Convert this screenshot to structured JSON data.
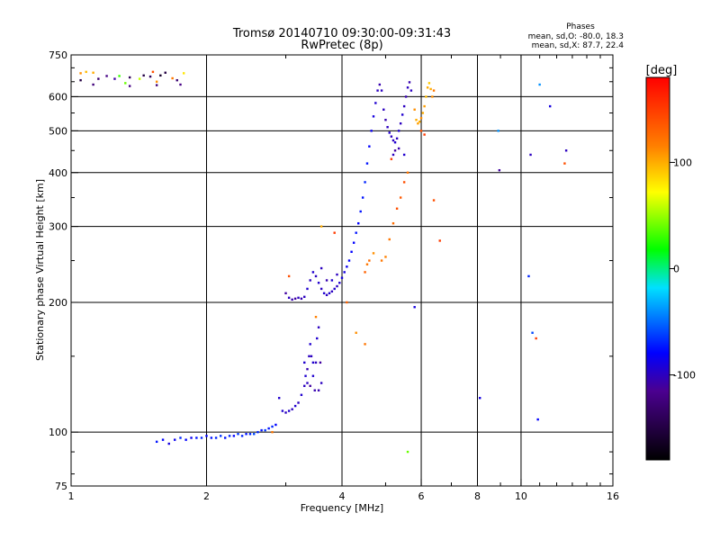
{
  "chart_data": {
    "type": "scatter",
    "title": "Tromsø 20140710 09:30:00-09:31:43",
    "subtitle": "RwPretec (8p)",
    "xlabel": "Frequency [MHz]",
    "ylabel": "Stationary phase Virtual Height [km]",
    "x_scale": "log",
    "y_scale": "log",
    "xlim": [
      1,
      16
    ],
    "ylim": [
      75,
      750
    ],
    "x_ticks": [
      1,
      2,
      4,
      6,
      8,
      10,
      16
    ],
    "x_tick_labels": [
      "1",
      "2",
      "4",
      "6",
      "8",
      "10",
      "16"
    ],
    "y_ticks": [
      75,
      100,
      200,
      300,
      400,
      500,
      600,
      750
    ],
    "y_tick_labels": [
      "75",
      "100",
      "200",
      "300",
      "400",
      "500",
      "600",
      "750"
    ],
    "x_grid": [
      2,
      4,
      6,
      8,
      10
    ],
    "y_grid": [
      100,
      200,
      300,
      400,
      500,
      600
    ],
    "stats": {
      "heading": "Phases",
      "line_o": "mean, sd,O: -80.0, 18.3",
      "line_x": "mean, sd,X:  87.7, 22.4"
    },
    "colorbar": {
      "label": "[deg]",
      "range": [
        -180,
        180
      ],
      "tick_values": [
        100,
        0,
        -100
      ],
      "tick_labels": [
        "100",
        "0",
        "-100"
      ]
    },
    "points_note": "approximate traces read from plot: [frequency MHz, virtual height km, phase deg]",
    "points": [
      [
        1.05,
        680,
        110
      ],
      [
        1.08,
        685,
        95
      ],
      [
        1.12,
        682,
        100
      ],
      [
        1.05,
        655,
        -150
      ],
      [
        1.15,
        660,
        -130
      ],
      [
        1.2,
        670,
        -120
      ],
      [
        1.25,
        660,
        -110
      ],
      [
        1.28,
        670,
        30
      ],
      [
        1.32,
        645,
        40
      ],
      [
        1.35,
        665,
        -140
      ],
      [
        1.42,
        660,
        60
      ],
      [
        1.45,
        672,
        -150
      ],
      [
        1.5,
        668,
        -140
      ],
      [
        1.52,
        685,
        140
      ],
      [
        1.55,
        650,
        110
      ],
      [
        1.58,
        672,
        -160
      ],
      [
        1.62,
        682,
        -150
      ],
      [
        1.68,
        662,
        120
      ],
      [
        1.72,
        655,
        -130
      ],
      [
        1.78,
        680,
        80
      ],
      [
        1.12,
        640,
        -125
      ],
      [
        1.35,
        635,
        -120
      ],
      [
        1.55,
        638,
        -125
      ],
      [
        1.75,
        640,
        -120
      ],
      [
        1.55,
        95,
        -75
      ],
      [
        1.6,
        96,
        -80
      ],
      [
        1.65,
        94,
        -90
      ],
      [
        1.7,
        96,
        -85
      ],
      [
        1.75,
        97,
        -70
      ],
      [
        1.8,
        96,
        -80
      ],
      [
        1.85,
        97,
        -85
      ],
      [
        1.9,
        97,
        -75
      ],
      [
        1.95,
        97,
        -70
      ],
      [
        2.0,
        98,
        -80
      ],
      [
        2.05,
        97,
        -75
      ],
      [
        2.1,
        97,
        -70
      ],
      [
        2.15,
        98,
        -65
      ],
      [
        2.2,
        97,
        -75
      ],
      [
        2.25,
        98,
        -70
      ],
      [
        2.3,
        98,
        -80
      ],
      [
        2.35,
        99,
        -65
      ],
      [
        2.4,
        98,
        -70
      ],
      [
        2.45,
        99,
        -75
      ],
      [
        2.5,
        99,
        -70
      ],
      [
        2.55,
        99,
        -60
      ],
      [
        2.6,
        100,
        -70
      ],
      [
        2.65,
        101,
        -75
      ],
      [
        2.7,
        101,
        -65
      ],
      [
        2.75,
        102,
        -75
      ],
      [
        2.8,
        103,
        -70
      ],
      [
        2.85,
        104,
        -80
      ],
      [
        2.8,
        100,
        120
      ],
      [
        2.9,
        120,
        -95
      ],
      [
        2.95,
        112,
        -95
      ],
      [
        3.0,
        111,
        -100
      ],
      [
        3.05,
        112,
        -95
      ],
      [
        3.1,
        113,
        -100
      ],
      [
        3.15,
        115,
        -95
      ],
      [
        3.2,
        117,
        -100
      ],
      [
        3.25,
        122,
        -95
      ],
      [
        3.3,
        128,
        -100
      ],
      [
        3.32,
        135,
        -95
      ],
      [
        3.35,
        140,
        -105
      ],
      [
        3.38,
        150,
        -100
      ],
      [
        3.4,
        160,
        -95
      ],
      [
        3.42,
        150,
        -100
      ],
      [
        3.45,
        135,
        -95
      ],
      [
        3.48,
        125,
        -105
      ],
      [
        3.5,
        145,
        -100
      ],
      [
        3.52,
        165,
        -95
      ],
      [
        3.55,
        175,
        -100
      ],
      [
        3.5,
        185,
        115
      ],
      [
        3.58,
        145,
        -110
      ],
      [
        3.6,
        130,
        -100
      ],
      [
        3.4,
        128,
        -110
      ],
      [
        3.45,
        145,
        -95
      ],
      [
        3.55,
        125,
        -105
      ],
      [
        3.35,
        130,
        -100
      ],
      [
        3.3,
        145,
        -95
      ],
      [
        3.0,
        210,
        -110
      ],
      [
        3.05,
        205,
        -100
      ],
      [
        3.1,
        203,
        -105
      ],
      [
        3.15,
        204,
        -110
      ],
      [
        3.2,
        205,
        -100
      ],
      [
        3.25,
        204,
        -105
      ],
      [
        3.3,
        206,
        -100
      ],
      [
        3.35,
        215,
        -95
      ],
      [
        3.4,
        225,
        -100
      ],
      [
        3.45,
        235,
        -95
      ],
      [
        3.5,
        230,
        -100
      ],
      [
        3.55,
        222,
        -95
      ],
      [
        3.6,
        215,
        -100
      ],
      [
        3.65,
        210,
        -95
      ],
      [
        3.7,
        208,
        -100
      ],
      [
        3.75,
        210,
        -95
      ],
      [
        3.8,
        212,
        -100
      ],
      [
        3.85,
        215,
        -95
      ],
      [
        3.9,
        218,
        -100
      ],
      [
        3.95,
        222,
        -95
      ],
      [
        4.0,
        228,
        -90
      ],
      [
        4.05,
        235,
        -90
      ],
      [
        4.1,
        242,
        -85
      ],
      [
        4.15,
        250,
        -80
      ],
      [
        4.2,
        262,
        -80
      ],
      [
        4.25,
        275,
        -80
      ],
      [
        4.3,
        290,
        -75
      ],
      [
        4.35,
        305,
        -80
      ],
      [
        4.4,
        325,
        -75
      ],
      [
        4.45,
        350,
        -75
      ],
      [
        4.5,
        380,
        -70
      ],
      [
        4.55,
        420,
        -75
      ],
      [
        4.6,
        460,
        -80
      ],
      [
        4.65,
        500,
        -85
      ],
      [
        4.7,
        540,
        -90
      ],
      [
        4.75,
        580,
        -95
      ],
      [
        4.8,
        620,
        -100
      ],
      [
        4.85,
        640,
        -105
      ],
      [
        4.9,
        620,
        -100
      ],
      [
        4.95,
        560,
        -100
      ],
      [
        5.0,
        530,
        -105
      ],
      [
        5.05,
        510,
        -100
      ],
      [
        5.1,
        495,
        -95
      ],
      [
        5.15,
        485,
        -100
      ],
      [
        5.2,
        475,
        -100
      ],
      [
        5.25,
        470,
        -95
      ],
      [
        5.3,
        480,
        -100
      ],
      [
        5.35,
        500,
        -95
      ],
      [
        5.4,
        520,
        -100
      ],
      [
        5.45,
        545,
        -95
      ],
      [
        5.5,
        570,
        -100
      ],
      [
        5.55,
        600,
        -105
      ],
      [
        5.6,
        630,
        -100
      ],
      [
        5.65,
        648,
        -105
      ],
      [
        5.7,
        620,
        -100
      ],
      [
        5.25,
        450,
        -110
      ],
      [
        5.35,
        455,
        -105
      ],
      [
        5.2,
        440,
        -100
      ],
      [
        5.5,
        440,
        -95
      ],
      [
        3.6,
        240,
        -100
      ],
      [
        3.7,
        225,
        -105
      ],
      [
        3.8,
        225,
        -95
      ],
      [
        3.9,
        232,
        -100
      ],
      [
        5.8,
        560,
        110
      ],
      [
        5.85,
        530,
        100
      ],
      [
        5.9,
        520,
        105
      ],
      [
        5.95,
        525,
        100
      ],
      [
        6.0,
        535,
        110
      ],
      [
        6.05,
        550,
        100
      ],
      [
        6.1,
        570,
        105
      ],
      [
        6.15,
        600,
        95
      ],
      [
        6.2,
        630,
        100
      ],
      [
        6.25,
        645,
        90
      ],
      [
        6.3,
        625,
        100
      ],
      [
        6.35,
        600,
        110
      ],
      [
        6.4,
        620,
        120
      ],
      [
        6.0,
        500,
        140
      ],
      [
        6.1,
        490,
        150
      ],
      [
        4.5,
        235,
        130
      ],
      [
        4.55,
        245,
        120
      ],
      [
        4.6,
        250,
        125
      ],
      [
        4.7,
        260,
        110
      ],
      [
        4.9,
        250,
        120
      ],
      [
        5.0,
        255,
        115
      ],
      [
        5.1,
        280,
        120
      ],
      [
        5.2,
        305,
        125
      ],
      [
        5.3,
        330,
        140
      ],
      [
        5.4,
        350,
        135
      ],
      [
        5.5,
        380,
        140
      ],
      [
        5.6,
        400,
        120
      ],
      [
        5.15,
        430,
        150
      ],
      [
        6.4,
        345,
        140
      ],
      [
        4.1,
        200,
        130
      ],
      [
        3.85,
        290,
        150
      ],
      [
        3.05,
        230,
        140
      ],
      [
        3.6,
        300,
        100
      ],
      [
        4.3,
        170,
        110
      ],
      [
        4.5,
        160,
        120
      ],
      [
        5.6,
        90,
        40
      ],
      [
        6.6,
        278,
        150
      ],
      [
        8.1,
        120,
        -90
      ],
      [
        8.9,
        500,
        -40
      ],
      [
        8.95,
        405,
        -110
      ],
      [
        10.5,
        440,
        -100
      ],
      [
        11.0,
        640,
        -40
      ],
      [
        11.6,
        570,
        -90
      ],
      [
        12.6,
        450,
        -100
      ],
      [
        12.5,
        420,
        140
      ],
      [
        10.4,
        230,
        -70
      ],
      [
        10.6,
        170,
        -60
      ],
      [
        10.8,
        165,
        150
      ],
      [
        10.9,
        107,
        -80
      ],
      [
        5.8,
        195,
        -90
      ]
    ]
  }
}
